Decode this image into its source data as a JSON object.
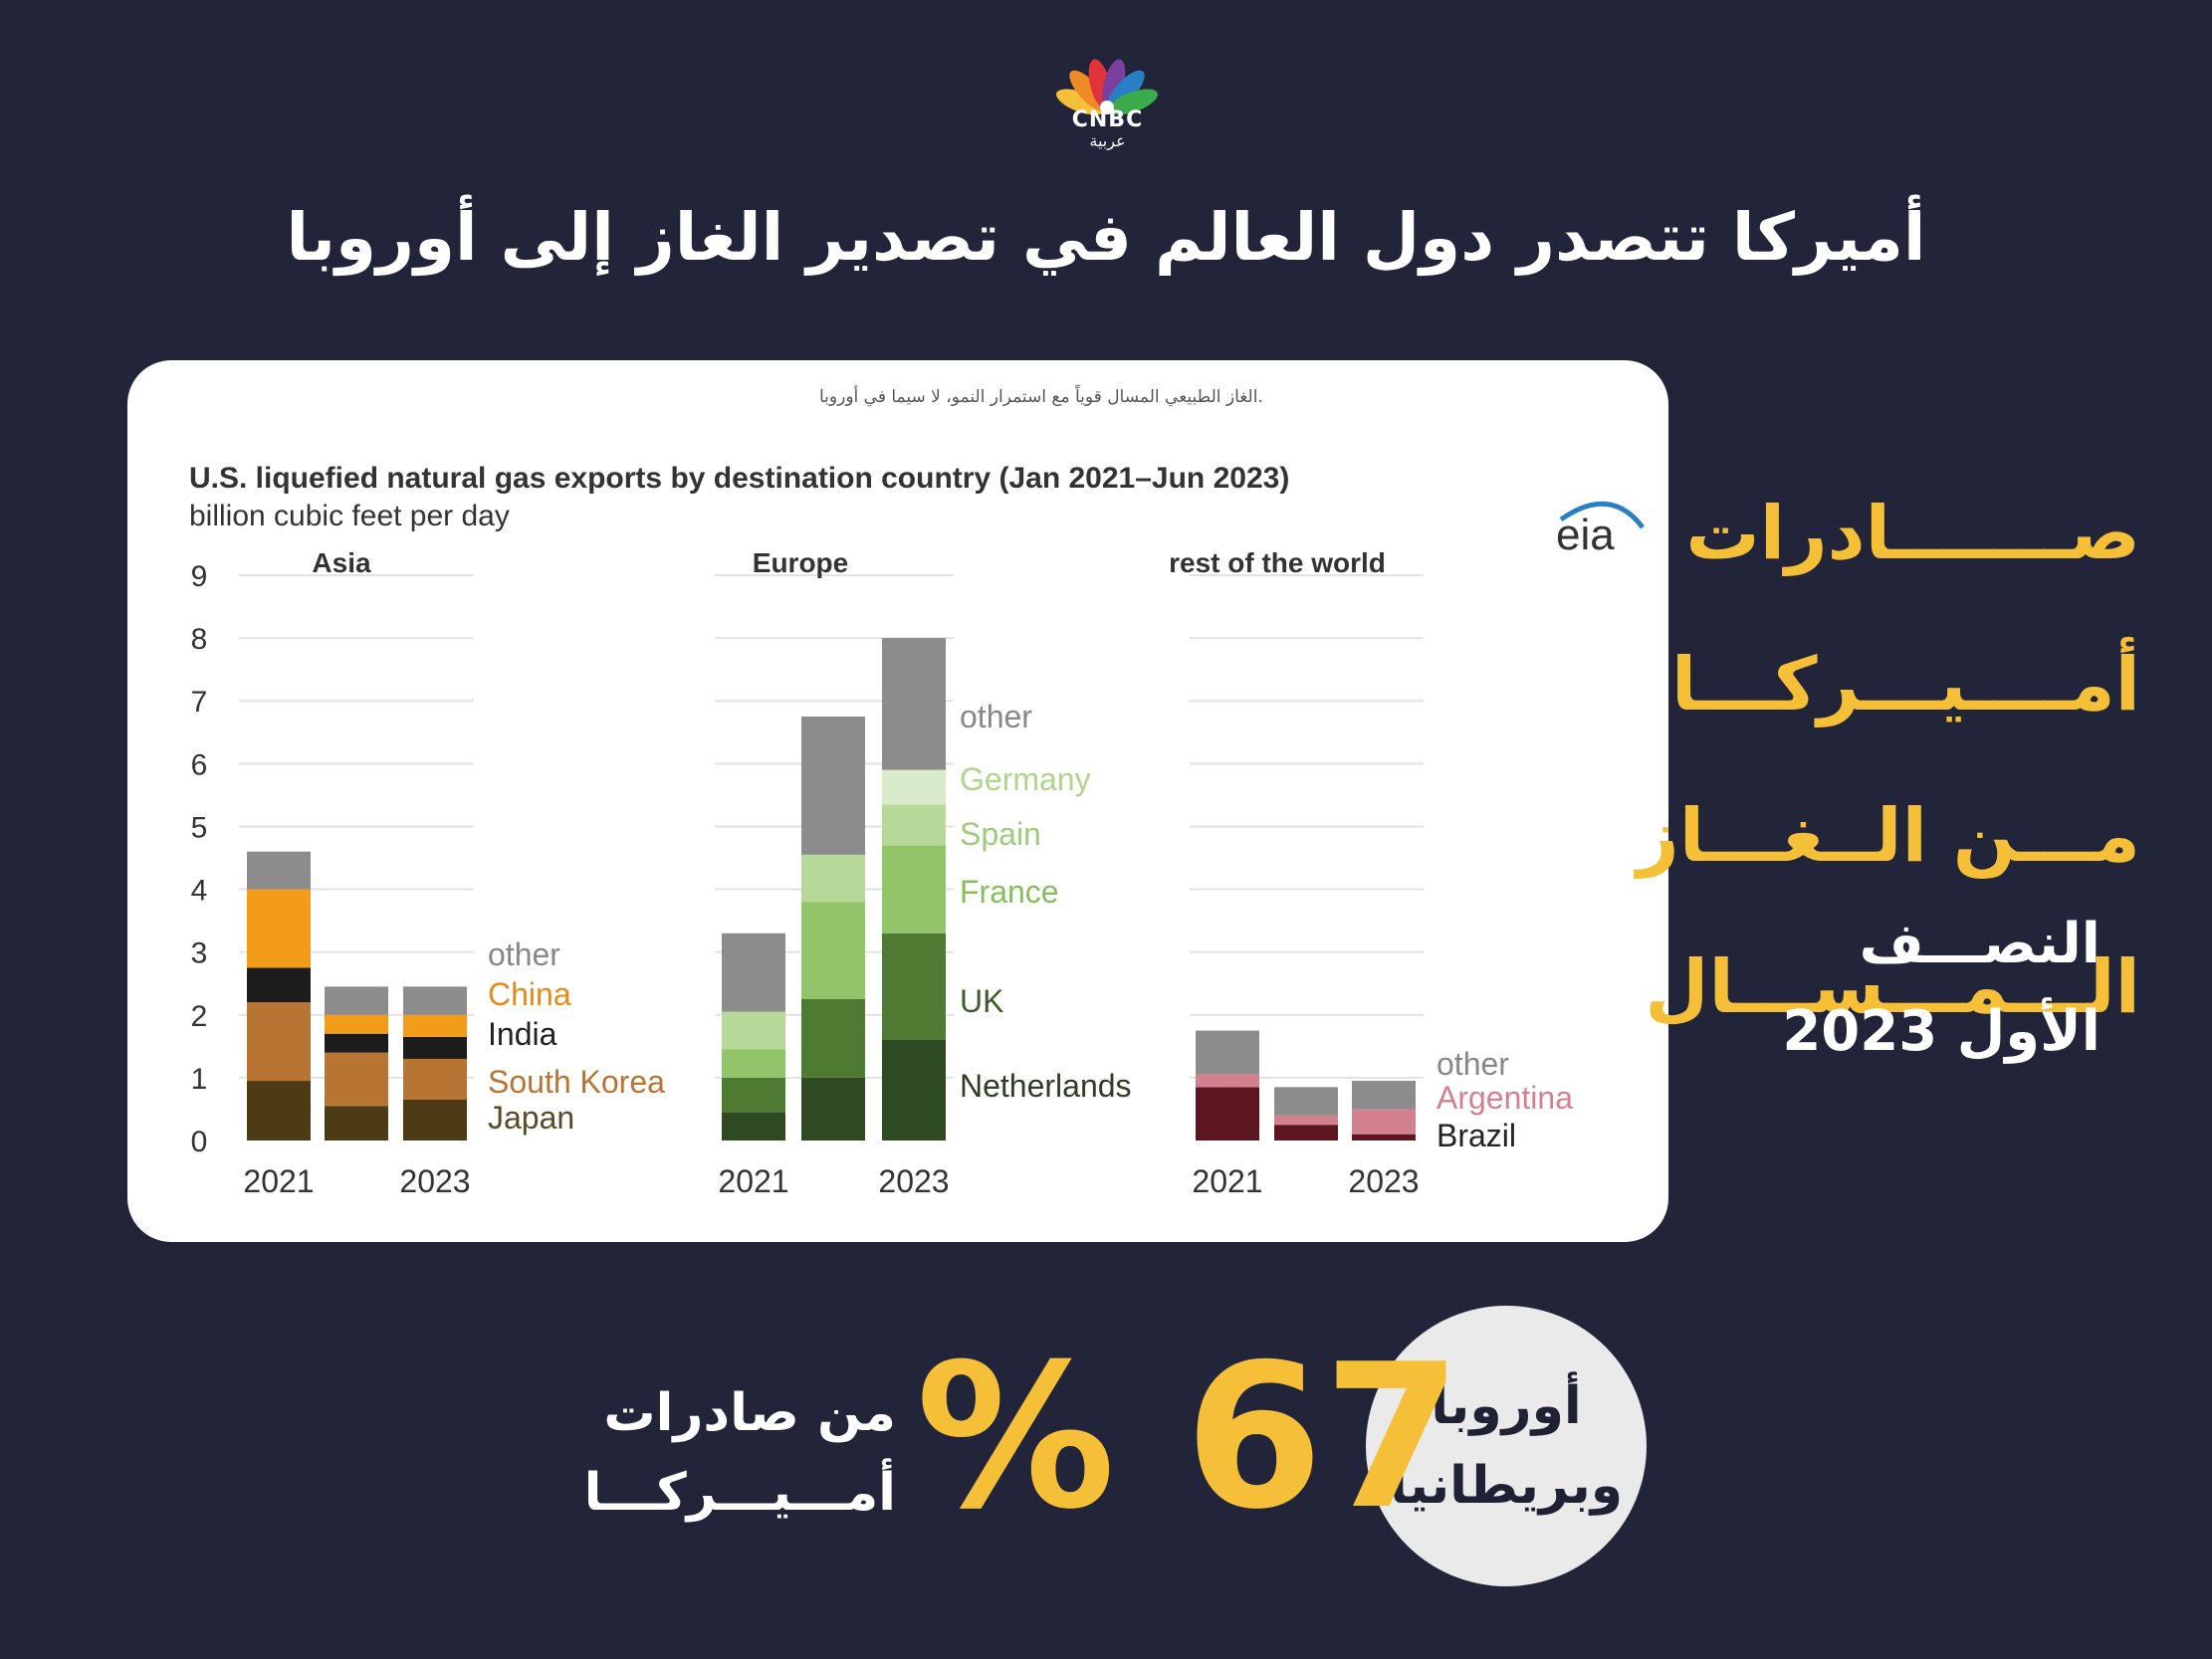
{
  "brand": {
    "logo_text": "CNBC",
    "logo_sub": "عربية"
  },
  "headline": "أميركا تتصدر دول العالم في تصدير الغاز إلى أوروبا",
  "side_title": [
    "صـــــــادرات",
    "أمــــيـــركـــا",
    "مـــن الــغـــاز",
    "الـــمـــســـال"
  ],
  "side_sub": [
    "النصـــف",
    "الأول 2023"
  ],
  "stat": {
    "region_line1": "أوروبا",
    "region_line2": "وبريطانيا",
    "value": "67",
    "unit": "%",
    "label_line1": "من صادرات",
    "label_line2": "أمـــيـــركـــا"
  },
  "card": {
    "caption": ".الغاز الطبيعي المسال قوياً مع استمرار النمو، لا سيما في أوروبا",
    "source_logo": "eia"
  },
  "chart_data": {
    "type": "bar",
    "stacked": true,
    "title": "U.S. liquefied natural gas exports by destination country (Jan 2021–Jun 2023)",
    "ylabel": "billion cubic feet per day",
    "ylim": [
      0,
      9
    ],
    "yticks": [
      0,
      1,
      2,
      3,
      4,
      5,
      6,
      7,
      8,
      9
    ],
    "grid": true,
    "colors": {
      "asia": [
        "#4d3b16",
        "#b87432",
        "#1c1c1c",
        "#f39c1a",
        "#8c8c8c"
      ],
      "europe": [
        "#2e4a23",
        "#4e7a32",
        "#92c56a",
        "#b6d99a",
        "#d9ecc9",
        "#8c8c8c"
      ],
      "rest": [
        "#5c1620",
        "#d4818f",
        "#8c8c8c"
      ]
    },
    "panels": [
      {
        "name": "Asia",
        "categories": [
          "2021",
          "2022",
          "2023"
        ],
        "tick_labels": [
          "2021",
          "",
          "2023"
        ],
        "series": [
          {
            "name": "Japan",
            "values": [
              0.95,
              0.55,
              0.65
            ]
          },
          {
            "name": "South Korea",
            "values": [
              1.25,
              0.85,
              0.65
            ]
          },
          {
            "name": "India",
            "values": [
              0.55,
              0.3,
              0.35
            ]
          },
          {
            "name": "China",
            "values": [
              1.25,
              0.3,
              0.35
            ]
          },
          {
            "name": "other",
            "values": [
              0.6,
              0.45,
              0.45
            ]
          }
        ]
      },
      {
        "name": "Europe",
        "categories": [
          "2021",
          "2022",
          "2023"
        ],
        "tick_labels": [
          "2021",
          "",
          "2023"
        ],
        "series": [
          {
            "name": "Netherlands",
            "values": [
              0.45,
              1.0,
              1.6
            ]
          },
          {
            "name": "UK",
            "values": [
              0.55,
              1.25,
              1.7
            ]
          },
          {
            "name": "France",
            "values": [
              0.45,
              1.55,
              1.4
            ]
          },
          {
            "name": "Spain",
            "values": [
              0.6,
              0.75,
              0.65
            ]
          },
          {
            "name": "Germany",
            "values": [
              0,
              0,
              0.55
            ]
          },
          {
            "name": "other",
            "values": [
              1.25,
              2.2,
              2.1
            ]
          }
        ]
      },
      {
        "name": "rest of the world",
        "categories": [
          "2021",
          "2022",
          "2023"
        ],
        "tick_labels": [
          "2021",
          "",
          "2023"
        ],
        "series": [
          {
            "name": "Brazil",
            "values": [
              0.85,
              0.25,
              0.1
            ]
          },
          {
            "name": "Argentina",
            "values": [
              0.2,
              0.15,
              0.4
            ]
          },
          {
            "name": "other",
            "values": [
              0.7,
              0.45,
              0.45
            ]
          }
        ]
      }
    ]
  }
}
